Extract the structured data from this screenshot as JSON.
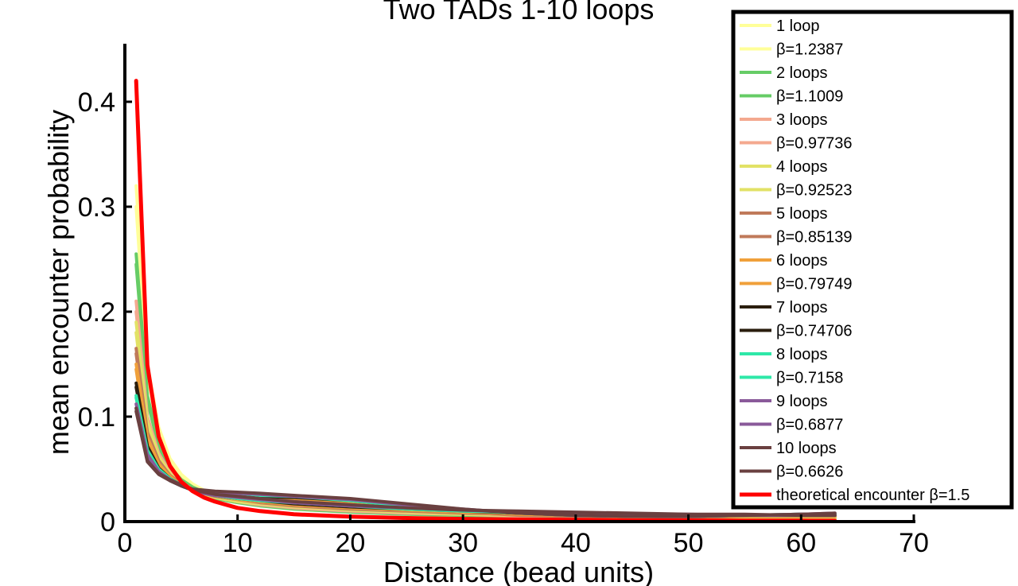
{
  "chart_data": {
    "type": "line",
    "title": "Two TADs 1-10 loops",
    "xlabel": "Distance (bead units)",
    "ylabel": "mean encounter probability",
    "xlim": [
      0,
      70
    ],
    "ylim": [
      0,
      0.45
    ],
    "xticks": [
      "0",
      "10",
      "20",
      "30",
      "40",
      "50",
      "60",
      "70"
    ],
    "yticks": [
      "0",
      "0.1",
      "0.2",
      "0.3",
      "0.4"
    ],
    "grid": false,
    "legend_position": "top-right",
    "x": [
      1,
      2,
      3,
      4,
      5,
      6,
      7,
      8,
      10,
      12,
      15,
      20,
      25,
      30,
      35,
      40,
      45,
      50,
      55,
      60,
      63
    ],
    "series": [
      {
        "name": "1 loop",
        "color": "#ffff99",
        "width": 4,
        "values": [
          0.32,
          0.15,
          0.09,
          0.06,
          0.045,
          0.036,
          0.03,
          0.026,
          0.021,
          0.018,
          0.016,
          0.012,
          0.008,
          0.005,
          0.004,
          0.003,
          0.003,
          0.003,
          0.004,
          0.005,
          0.005
        ]
      },
      {
        "name": "β=1.2387",
        "color": "#ffff99",
        "width": 4,
        "values": [
          0.3,
          0.14,
          0.082,
          0.056,
          0.042,
          0.033,
          0.027,
          0.023,
          0.018,
          0.015,
          0.012,
          0.009,
          0.007,
          0.005,
          0.004,
          0.004,
          0.003,
          0.003,
          0.003,
          0.003,
          0.003
        ]
      },
      {
        "name": "2 loops",
        "color": "#66cc66",
        "width": 4,
        "values": [
          0.255,
          0.12,
          0.075,
          0.052,
          0.04,
          0.033,
          0.028,
          0.025,
          0.021,
          0.019,
          0.016,
          0.013,
          0.009,
          0.006,
          0.004,
          0.004,
          0.003,
          0.003,
          0.004,
          0.005,
          0.005
        ]
      },
      {
        "name": "β=1.1009",
        "color": "#66cc66",
        "width": 4,
        "values": [
          0.245,
          0.115,
          0.072,
          0.05,
          0.038,
          0.031,
          0.026,
          0.022,
          0.018,
          0.015,
          0.012,
          0.009,
          0.007,
          0.006,
          0.005,
          0.004,
          0.004,
          0.003,
          0.003,
          0.003,
          0.003
        ]
      },
      {
        "name": "3 loops",
        "color": "#f4a98f",
        "width": 4,
        "values": [
          0.21,
          0.1,
          0.065,
          0.047,
          0.037,
          0.031,
          0.028,
          0.026,
          0.023,
          0.021,
          0.02,
          0.016,
          0.011,
          0.007,
          0.005,
          0.004,
          0.004,
          0.004,
          0.005,
          0.005,
          0.005
        ]
      },
      {
        "name": "β=0.97736",
        "color": "#f4a98f",
        "width": 4,
        "values": [
          0.2,
          0.097,
          0.063,
          0.046,
          0.036,
          0.03,
          0.026,
          0.023,
          0.019,
          0.016,
          0.013,
          0.01,
          0.008,
          0.007,
          0.006,
          0.005,
          0.005,
          0.004,
          0.004,
          0.004,
          0.004
        ]
      },
      {
        "name": "4 loops",
        "color": "#e2e266",
        "width": 4,
        "values": [
          0.19,
          0.095,
          0.062,
          0.046,
          0.036,
          0.031,
          0.028,
          0.026,
          0.023,
          0.021,
          0.019,
          0.017,
          0.012,
          0.008,
          0.006,
          0.005,
          0.004,
          0.004,
          0.005,
          0.005,
          0.005
        ]
      },
      {
        "name": "β=0.92523",
        "color": "#e2e266",
        "width": 4,
        "values": [
          0.18,
          0.09,
          0.06,
          0.045,
          0.035,
          0.03,
          0.026,
          0.023,
          0.019,
          0.017,
          0.014,
          0.011,
          0.009,
          0.007,
          0.006,
          0.005,
          0.005,
          0.005,
          0.004,
          0.004,
          0.004
        ]
      },
      {
        "name": "5 loops",
        "color": "#c07a5a",
        "width": 4,
        "values": [
          0.165,
          0.085,
          0.058,
          0.044,
          0.036,
          0.031,
          0.029,
          0.027,
          0.025,
          0.023,
          0.021,
          0.018,
          0.013,
          0.009,
          0.006,
          0.005,
          0.005,
          0.004,
          0.005,
          0.006,
          0.006
        ]
      },
      {
        "name": "β=0.85139",
        "color": "#c07a5a",
        "width": 4,
        "values": [
          0.16,
          0.08,
          0.055,
          0.043,
          0.035,
          0.03,
          0.027,
          0.024,
          0.021,
          0.018,
          0.015,
          0.012,
          0.01,
          0.008,
          0.007,
          0.006,
          0.006,
          0.005,
          0.005,
          0.005,
          0.005
        ]
      },
      {
        "name": "6 loops",
        "color": "#f0a03a",
        "width": 4,
        "values": [
          0.15,
          0.08,
          0.055,
          0.043,
          0.035,
          0.031,
          0.029,
          0.027,
          0.025,
          0.023,
          0.022,
          0.019,
          0.014,
          0.01,
          0.007,
          0.006,
          0.005,
          0.005,
          0.005,
          0.006,
          0.006
        ]
      },
      {
        "name": "β=0.79749",
        "color": "#f0a03a",
        "width": 4,
        "values": [
          0.145,
          0.075,
          0.053,
          0.042,
          0.035,
          0.03,
          0.027,
          0.025,
          0.021,
          0.019,
          0.016,
          0.013,
          0.011,
          0.009,
          0.008,
          0.007,
          0.006,
          0.006,
          0.005,
          0.005,
          0.005
        ]
      },
      {
        "name": "7 loops",
        "color": "#2a1e0e",
        "width": 4,
        "values": [
          0.132,
          0.072,
          0.051,
          0.041,
          0.035,
          0.031,
          0.029,
          0.028,
          0.026,
          0.024,
          0.023,
          0.02,
          0.015,
          0.011,
          0.008,
          0.006,
          0.005,
          0.005,
          0.006,
          0.007,
          0.007
        ]
      },
      {
        "name": "β=0.74706",
        "color": "#2a1e0e",
        "width": 4,
        "values": [
          0.128,
          0.07,
          0.05,
          0.04,
          0.034,
          0.03,
          0.027,
          0.025,
          0.022,
          0.02,
          0.017,
          0.014,
          0.012,
          0.01,
          0.008,
          0.007,
          0.007,
          0.006,
          0.006,
          0.006,
          0.006
        ]
      },
      {
        "name": "8 loops",
        "color": "#2ee8a8",
        "width": 4,
        "values": [
          0.12,
          0.068,
          0.05,
          0.041,
          0.035,
          0.031,
          0.029,
          0.028,
          0.027,
          0.025,
          0.024,
          0.02,
          0.015,
          0.011,
          0.008,
          0.006,
          0.005,
          0.005,
          0.006,
          0.007,
          0.007
        ]
      },
      {
        "name": "β=0.7158",
        "color": "#2ee8a8",
        "width": 4,
        "values": [
          0.118,
          0.066,
          0.048,
          0.039,
          0.034,
          0.03,
          0.027,
          0.025,
          0.022,
          0.02,
          0.018,
          0.015,
          0.012,
          0.01,
          0.009,
          0.008,
          0.007,
          0.006,
          0.006,
          0.006,
          0.006
        ]
      },
      {
        "name": "9 loops",
        "color": "#8a5a9a",
        "width": 4,
        "values": [
          0.112,
          0.064,
          0.048,
          0.04,
          0.035,
          0.031,
          0.029,
          0.028,
          0.027,
          0.026,
          0.024,
          0.021,
          0.016,
          0.012,
          0.008,
          0.006,
          0.005,
          0.005,
          0.006,
          0.007,
          0.008
        ]
      },
      {
        "name": "β=0.6877",
        "color": "#8a5a9a",
        "width": 4,
        "values": [
          0.108,
          0.062,
          0.047,
          0.039,
          0.034,
          0.03,
          0.027,
          0.025,
          0.023,
          0.021,
          0.018,
          0.015,
          0.013,
          0.011,
          0.009,
          0.008,
          0.007,
          0.007,
          0.006,
          0.006,
          0.006
        ]
      },
      {
        "name": "10 loops",
        "color": "#6a4040",
        "width": 4,
        "values": [
          0.108,
          0.058,
          0.046,
          0.04,
          0.035,
          0.031,
          0.03,
          0.029,
          0.028,
          0.027,
          0.025,
          0.022,
          0.017,
          0.012,
          0.008,
          0.006,
          0.005,
          0.005,
          0.006,
          0.007,
          0.008
        ]
      },
      {
        "name": "β=0.6626",
        "color": "#6a4040",
        "width": 4,
        "values": [
          0.105,
          0.057,
          0.045,
          0.039,
          0.034,
          0.03,
          0.028,
          0.026,
          0.024,
          0.022,
          0.019,
          0.016,
          0.013,
          0.011,
          0.01,
          0.009,
          0.008,
          0.007,
          0.007,
          0.006,
          0.006
        ]
      },
      {
        "name": "theoretical encounter β=1.5",
        "color": "#ff0000",
        "width": 5,
        "values": [
          0.42,
          0.149,
          0.081,
          0.053,
          0.038,
          0.029,
          0.023,
          0.019,
          0.013,
          0.01,
          0.007,
          0.0047,
          0.0034,
          0.0026,
          0.002,
          0.0017,
          0.0014,
          0.0012,
          0.001,
          0.0009,
          0.0008
        ]
      }
    ]
  }
}
